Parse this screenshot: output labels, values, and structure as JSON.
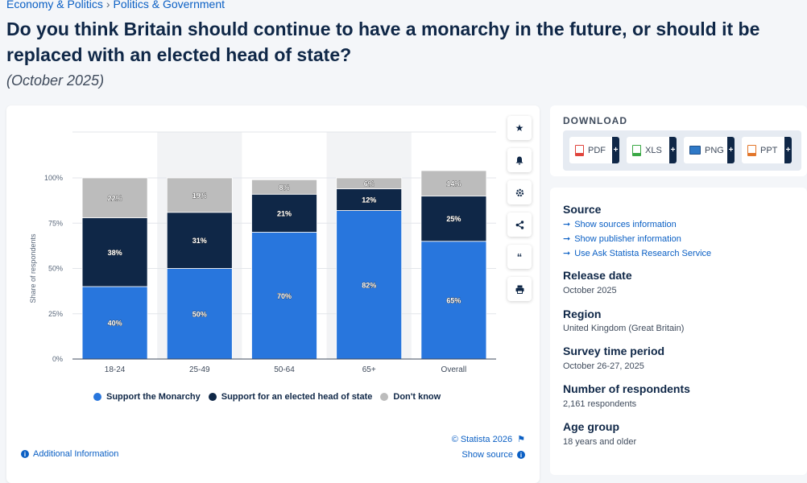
{
  "breadcrumb": {
    "items": [
      "Economy & Politics",
      "Politics & Government"
    ],
    "separator": "›"
  },
  "title": "Do you think Britain should continue to have a monarchy in the future, or should it be replaced with an elected head of state?",
  "subtitle": "(October 2025)",
  "chart_data": {
    "type": "bar",
    "stacked": true,
    "categories": [
      "18-24",
      "25-49",
      "50-64",
      "65+",
      "Overall"
    ],
    "ylabel": "Share of respondents",
    "ylim": [
      0,
      100
    ],
    "yticks": [
      "0%",
      "25%",
      "50%",
      "75%",
      "100%"
    ],
    "grid": true,
    "legend_position": "bottom",
    "series": [
      {
        "name": "Support the Monarchy",
        "color": "#2876dd",
        "values": [
          40,
          50,
          70,
          82,
          65
        ],
        "labels": [
          "40%",
          "50%",
          "70%",
          "82%",
          "65%"
        ]
      },
      {
        "name": "Support for an elected head of state",
        "color": "#0f2747",
        "values": [
          38,
          31,
          21,
          12,
          25
        ],
        "labels": [
          "38%",
          "31%",
          "21%",
          "12%",
          "25%"
        ]
      },
      {
        "name": "Don't know",
        "color": "#bcbcbc",
        "values": [
          22,
          19,
          8,
          6,
          14
        ],
        "labels": [
          "22%",
          "19%",
          "8%",
          "6%",
          "14%"
        ]
      }
    ]
  },
  "chart_footer": {
    "copyright": "© Statista 2026",
    "show_source": "Show source",
    "additional_info": "Additional Information"
  },
  "toolbar": {
    "icons": [
      "star-icon",
      "bell-icon",
      "gear-icon",
      "share-icon",
      "quote-icon",
      "print-icon"
    ]
  },
  "download": {
    "heading": "DOWNLOAD",
    "buttons": [
      {
        "label": "PDF",
        "icon": "pdf-file-icon",
        "color": "#e0443c"
      },
      {
        "label": "XLS",
        "icon": "xls-file-icon",
        "color": "#3aa845"
      },
      {
        "label": "PNG",
        "icon": "png-file-icon",
        "color": "#2f79c7"
      },
      {
        "label": "PPT",
        "icon": "ppt-file-icon",
        "color": "#e2762a"
      }
    ],
    "plus": "+"
  },
  "info": {
    "source_heading": "Source",
    "source_links": [
      "Show sources information",
      "Show publisher information",
      "Use Ask Statista Research Service"
    ],
    "release_heading": "Release date",
    "release_value": "October 2025",
    "region_heading": "Region",
    "region_value": "United Kingdom (Great Britain)",
    "survey_heading": "Survey time period",
    "survey_value": "October 26-27, 2025",
    "respondents_heading": "Number of respondents",
    "respondents_value": "2,161 respondents",
    "age_heading": "Age group",
    "age_value": "18 years and older"
  }
}
